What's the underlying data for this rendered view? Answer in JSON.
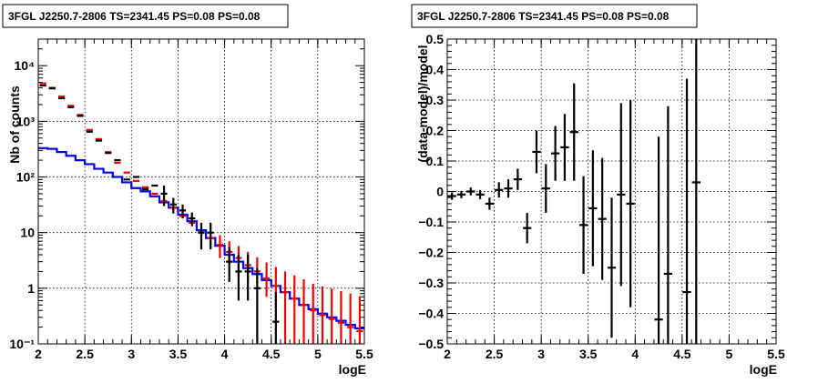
{
  "chart_data": [
    {
      "type": "step",
      "title": "3FGL J2250.7-2806 TS=2341.45 PS=0.08 PS=0.08",
      "xlabel": "logE",
      "ylabel": "Nb of counts",
      "xlim": [
        2,
        5.5
      ],
      "ylim": [
        0.1,
        30000
      ],
      "yscale": "log",
      "grid": true,
      "xticks": [
        2,
        2.5,
        3,
        3.5,
        4,
        4.5,
        5,
        5.5
      ],
      "xtick_labels": [
        "2",
        "2.5",
        "3",
        "3.5",
        "4",
        "4.5",
        "5",
        "5.5"
      ],
      "yticks": [
        0.1,
        1,
        10,
        100,
        1000,
        10000
      ],
      "ytick_labels": [
        "10⁻¹",
        "1",
        "10",
        "10²",
        "10³",
        "10⁴"
      ],
      "bin_edges": [
        2.0,
        2.1,
        2.2,
        2.3,
        2.4,
        2.5,
        2.6,
        2.7,
        2.8,
        2.9,
        3.0,
        3.1,
        3.2,
        3.3,
        3.4,
        3.5,
        3.6,
        3.7,
        3.8,
        3.9,
        4.0,
        4.1,
        4.2,
        4.3,
        4.4,
        4.5,
        4.6,
        4.7,
        4.8,
        4.9,
        5.0,
        5.1,
        5.2,
        5.3,
        5.4,
        5.5
      ],
      "series": [
        {
          "color": "#0000ee",
          "style": "step",
          "values": [
            330,
            320,
            280,
            240,
            200,
            170,
            140,
            120,
            100,
            80,
            63,
            55,
            45,
            35,
            28,
            21,
            16,
            11,
            8,
            5.8,
            4.0,
            3.0,
            2.3,
            1.8,
            1.4,
            1.1,
            0.85,
            0.65,
            0.5,
            0.42,
            0.35,
            0.3,
            0.26,
            0.22,
            0.19
          ]
        },
        {
          "color": "#ee0000",
          "style": "points-with-errors",
          "values": [
            4800,
            4000,
            2800,
            1900,
            1300,
            700,
            480,
            280,
            180,
            120,
            85,
            65,
            50,
            37,
            28,
            20,
            15,
            10,
            8,
            6,
            4.5,
            3.5,
            2.6,
            2.0,
            1.5,
            1.1,
            0.85,
            0.65,
            0.5,
            0.4,
            0.33,
            0.28,
            0.24,
            0.2,
            0.17
          ],
          "err_low": [
            null,
            null,
            null,
            null,
            null,
            null,
            null,
            null,
            null,
            null,
            null,
            null,
            null,
            null,
            null,
            null,
            null,
            null,
            null,
            2.5,
            1.6,
            1.4,
            1.1,
            0.9,
            0.8,
            0.65,
            0.75,
            0.6,
            0.5,
            0.4,
            0.33,
            0.28,
            0.24,
            0.2,
            0.17
          ],
          "err_high": [
            null,
            null,
            null,
            null,
            null,
            null,
            null,
            null,
            null,
            null,
            null,
            null,
            null,
            null,
            null,
            null,
            null,
            null,
            null,
            3.0,
            2.5,
            2.2,
            1.9,
            1.6,
            1.4,
            1.3,
            1.15,
            1.05,
            0.95,
            0.8,
            0.75,
            0.7,
            0.65,
            0.6,
            0.55
          ]
        },
        {
          "color": "#000000",
          "style": "points-with-errors",
          "x": [
            2.05,
            2.15,
            2.25,
            2.35,
            2.45,
            2.55,
            2.65,
            2.75,
            2.85,
            2.95,
            3.05,
            3.15,
            3.25,
            3.35,
            3.45,
            3.55,
            3.65,
            3.75,
            3.85,
            4.05,
            4.15,
            4.25,
            4.35,
            4.55
          ],
          "values": [
            4400,
            3900,
            2600,
            1800,
            1250,
            650,
            450,
            270,
            200,
            90,
            100,
            60,
            70,
            50,
            32,
            25,
            18,
            10,
            10,
            3.0,
            2.0,
            2.0,
            1.0,
            0.25
          ],
          "err_low": [
            null,
            null,
            null,
            null,
            null,
            null,
            null,
            null,
            null,
            null,
            null,
            null,
            null,
            20,
            10,
            7,
            5,
            5,
            5,
            1.7,
            1.4,
            1.4,
            0.9,
            0.2
          ],
          "err_high": [
            null,
            null,
            null,
            null,
            null,
            null,
            null,
            null,
            null,
            null,
            null,
            null,
            null,
            20,
            10,
            7,
            5,
            5,
            5,
            2.5,
            2.0,
            2.0,
            1.3,
            0.6
          ]
        }
      ]
    },
    {
      "type": "scatter",
      "title": "3FGL J2250.7-2806 TS=2341.45 PS=0.08 PS=0.08",
      "xlabel": "logE",
      "ylabel": "(data-model)/model",
      "xlim": [
        2,
        5.5
      ],
      "ylim": [
        -0.5,
        0.5
      ],
      "grid": true,
      "xticks": [
        2,
        2.5,
        3,
        3.5,
        4,
        4.5,
        5,
        5.5
      ],
      "xtick_labels": [
        "2",
        "2.5",
        "3",
        "3.5",
        "4",
        "4.5",
        "5",
        "5.5"
      ],
      "yticks": [
        -0.5,
        -0.4,
        -0.3,
        -0.2,
        -0.1,
        0,
        0.1,
        0.2,
        0.3,
        0.4,
        0.5
      ],
      "ytick_labels": [
        "−0.5",
        "−0.4",
        "−0.3",
        "−0.2",
        "−0.1",
        "0",
        "0.1",
        "0.2",
        "0.3",
        "0.4",
        "0.5"
      ],
      "series": [
        {
          "color": "#000000",
          "x": [
            2.05,
            2.15,
            2.25,
            2.35,
            2.45,
            2.55,
            2.65,
            2.75,
            2.85,
            2.95,
            3.05,
            3.15,
            3.25,
            3.35,
            3.45,
            3.55,
            3.65,
            3.75,
            3.85,
            3.95,
            4.25,
            4.35,
            4.55,
            4.65
          ],
          "values": [
            -0.015,
            -0.01,
            0.0,
            -0.01,
            -0.04,
            0.005,
            0.01,
            0.04,
            -0.12,
            0.13,
            0.01,
            0.125,
            0.145,
            0.195,
            -0.11,
            -0.055,
            -0.09,
            -0.25,
            -0.01,
            -0.04,
            -0.42,
            -0.27,
            -0.33,
            0.03
          ],
          "err": [
            0.012,
            0.012,
            0.013,
            0.015,
            0.02,
            0.025,
            0.03,
            0.035,
            0.05,
            0.07,
            0.08,
            0.09,
            0.11,
            0.16,
            0.16,
            0.19,
            0.2,
            0.23,
            0.3,
            0.34,
            0.6,
            0.55,
            0.7,
            0.8
          ]
        }
      ]
    }
  ]
}
